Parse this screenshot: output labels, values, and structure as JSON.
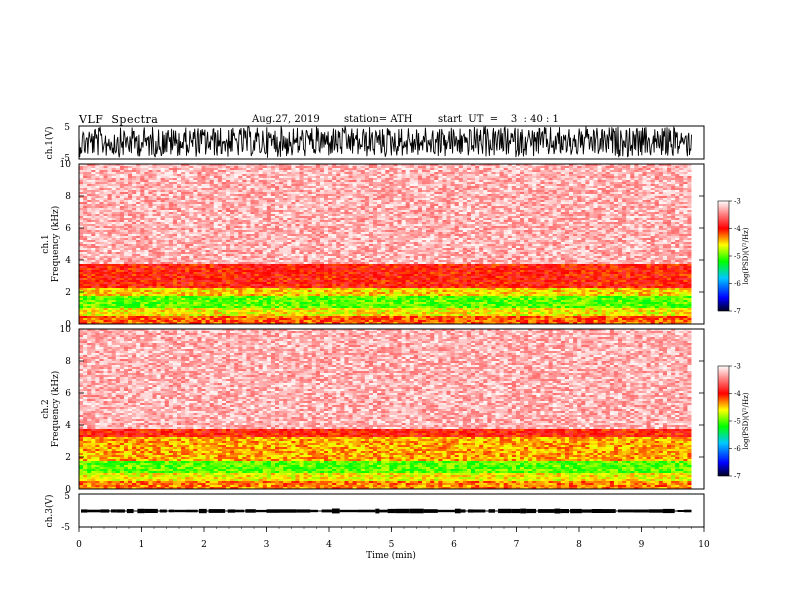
{
  "header": {
    "title": "VLF  Spectra",
    "date": "Aug.27, 2019",
    "station": "station= ATH",
    "start": "start  UT  =    3  : 40 : 1"
  },
  "chart_data": [
    {
      "type": "line",
      "ylabel": "ch.1(V)",
      "ylim": [
        -5,
        5
      ],
      "yticks": [
        "5",
        "-5"
      ],
      "xlim": [
        0,
        10
      ],
      "description": "dense noise waveform filling approx -4 to 4 V over 0–9.8 min"
    },
    {
      "type": "heatmap",
      "ylabel_line1": "ch.1",
      "ylabel_line2": "Frequency  (kHz)",
      "ylim": [
        0,
        10
      ],
      "yticks": [
        "0",
        "2",
        "4",
        "6",
        "8",
        "10"
      ],
      "xlim": [
        0,
        10
      ],
      "colorbar": {
        "label": "log(PSD)(V²/Hz)",
        "range": [
          -7,
          -3
        ],
        "ticks": [
          "-3",
          "-4",
          "-5",
          "-6",
          "-7"
        ]
      },
      "bands": [
        {
          "freq_khz": [
            0,
            0.5
          ],
          "level": -4.2
        },
        {
          "freq_khz": [
            0.5,
            1.0
          ],
          "level": -4.6
        },
        {
          "freq_khz": [
            1.0,
            1.8
          ],
          "level": -5.0
        },
        {
          "freq_khz": [
            1.8,
            2.3
          ],
          "level": -4.5
        },
        {
          "freq_khz": [
            2.3,
            3.8
          ],
          "level": -4.0
        },
        {
          "freq_khz": [
            3.8,
            10
          ],
          "level": -3.3
        }
      ]
    },
    {
      "type": "heatmap",
      "ylabel_line1": "ch.2",
      "ylabel_line2": "Frequency  (kHz)",
      "ylim": [
        0,
        10
      ],
      "yticks": [
        "0",
        "2",
        "4",
        "6",
        "8",
        "10"
      ],
      "xlim": [
        0,
        10
      ],
      "colorbar": {
        "label": "log(PSD)(V²/Hz)",
        "range": [
          -7,
          -3
        ],
        "ticks": [
          "-3",
          "-4",
          "-5",
          "-6",
          "-7"
        ]
      },
      "bands": [
        {
          "freq_khz": [
            0,
            0.5
          ],
          "level": -4.3
        },
        {
          "freq_khz": [
            0.5,
            1.0
          ],
          "level": -4.6
        },
        {
          "freq_khz": [
            1.0,
            1.8
          ],
          "level": -5.0
        },
        {
          "freq_khz": [
            1.8,
            3.3
          ],
          "level": -4.4
        },
        {
          "freq_khz": [
            3.3,
            3.8
          ],
          "level": -4.0
        },
        {
          "freq_khz": [
            3.8,
            10
          ],
          "level": -3.3
        }
      ]
    },
    {
      "type": "line",
      "ylabel": "ch.3(V)",
      "ylim": [
        -5,
        5
      ],
      "yticks": [
        "5",
        "-5"
      ],
      "xlim": [
        0,
        10
      ],
      "xticks": [
        "0",
        "1",
        "2",
        "3",
        "4",
        "5",
        "6",
        "7",
        "8",
        "9",
        "10"
      ],
      "xlabel": "Time  (min)",
      "description": "near-constant level around 0 V with small blocks over 0–9.8 min"
    }
  ],
  "colors": {
    "colormap": [
      "#000033",
      "#0000ff",
      "#00c8ff",
      "#00ff00",
      "#ffff00",
      "#ff0000",
      "#ff9090",
      "#ffffff"
    ]
  }
}
